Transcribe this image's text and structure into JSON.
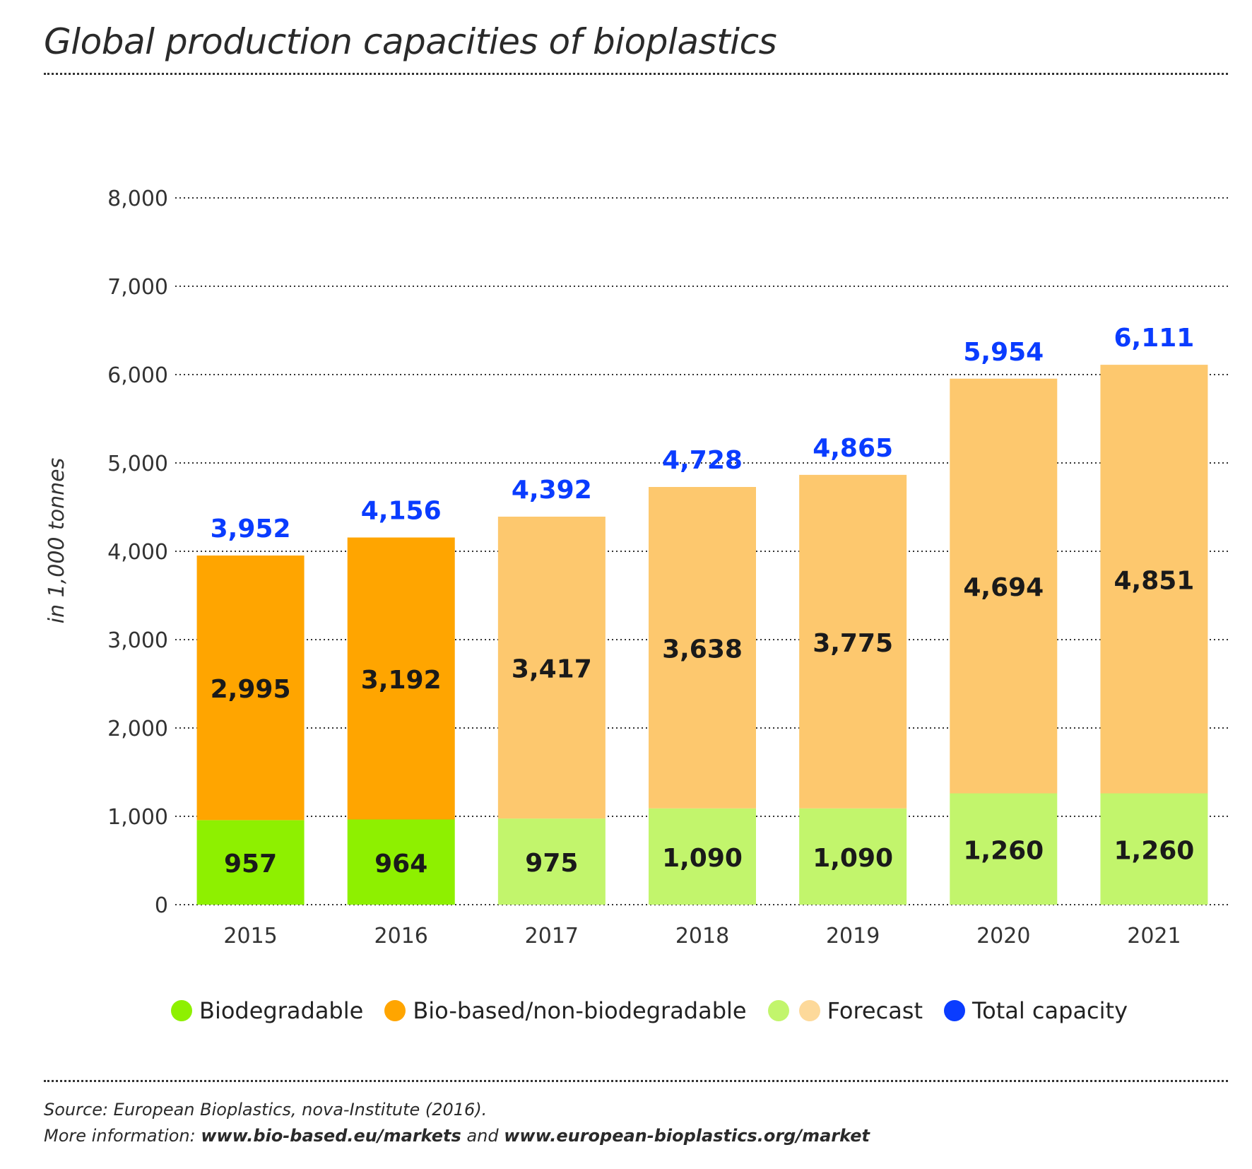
{
  "chart_data": {
    "type": "bar",
    "stacked": true,
    "title": "Global production capacities of bioplastics",
    "ylabel": "in 1,000 tonnes",
    "xlabel": "",
    "ylim": [
      0,
      8000
    ],
    "yticks": [
      "0",
      "1,000",
      "2,000",
      "3,000",
      "4,000",
      "5,000",
      "6,000",
      "7,000",
      "8,000"
    ],
    "grid": true,
    "categories": [
      "2015",
      "2016",
      "2017",
      "2018",
      "2019",
      "2020",
      "2021"
    ],
    "series": [
      {
        "name": "Biodegradable",
        "values": [
          957,
          964,
          975,
          1090,
          1090,
          1260,
          1260
        ],
        "labels": [
          "957",
          "964",
          "975",
          "1,090",
          "1,090",
          "1,260",
          "1,260"
        ],
        "color": "#8ef000",
        "forecast_color": "#c2f56c"
      },
      {
        "name": "Bio-based/non-biodegradable",
        "values": [
          2995,
          3192,
          3417,
          3638,
          3775,
          4694,
          4851
        ],
        "labels": [
          "2,995",
          "3,192",
          "3,417",
          "3,638",
          "3,775",
          "4,694",
          "4,851"
        ],
        "color": "#ffa500",
        "forecast_color": "#fdc86e"
      }
    ],
    "forecast_from_index": 2,
    "totals": {
      "name": "Total capacity",
      "values": [
        3952,
        4156,
        4392,
        4728,
        4865,
        5954,
        6111
      ],
      "labels": [
        "3,952",
        "4,156",
        "4,392",
        "4,728",
        "4,865",
        "5,954",
        "6,111"
      ],
      "color": "#0a3cff"
    },
    "legend_position": "bottom"
  },
  "legend": {
    "biodegradable": "Biodegradable",
    "biobased": "Bio-based/non-biodegradable",
    "forecast": "Forecast",
    "total": "Total capacity"
  },
  "colors": {
    "biodegradable": "#8ef000",
    "biobased": "#ffa500",
    "forecast_bio": "#c2f56c",
    "forecast_based": "#fdd99a",
    "total": "#0a3cff"
  },
  "source": {
    "line1": "Source: European Bioplastics, nova-Institute (2016).",
    "line2_prefix": "More information: ",
    "link1": "www.bio-based.eu/markets",
    "line2_mid": " and ",
    "link2": "www.european-bioplastics.org/market"
  }
}
